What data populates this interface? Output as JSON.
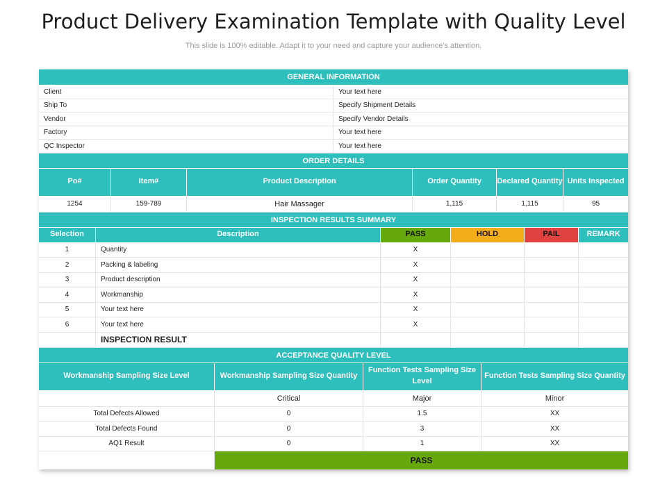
{
  "title": "Product Delivery Examination Template with Quality Level",
  "subtitle": "This slide is 100% editable. Adapt it to your need and capture your audience's attention.",
  "general": {
    "heading": "GENERAL INFORMATION",
    "rows": [
      {
        "label": "Client",
        "value": "Your text here"
      },
      {
        "label": "Ship To",
        "value": "Specify Shipment Details"
      },
      {
        "label": "Vendor",
        "value": "Specify Vendor Details"
      },
      {
        "label": "Factory",
        "value": "Your text here"
      },
      {
        "label": "QC Inspector",
        "value": "Your text here"
      }
    ]
  },
  "order": {
    "heading": "ORDER DETAILS",
    "columns": [
      "Po#",
      "Item#",
      "Product Description",
      "Order Quantity",
      "Declared Quantity",
      "Units Inspected"
    ],
    "row": [
      "1254",
      "159-789",
      "Hair Massager",
      "1,115",
      "1,115",
      "95"
    ]
  },
  "inspection": {
    "heading": "INSPECTION RESULTS SUMMARY",
    "columns": [
      "Selection",
      "Description",
      "PASS",
      "HOLD",
      "PAIL",
      "REMARK"
    ],
    "rows": [
      {
        "num": "1",
        "desc": "Quantity",
        "pass": "X"
      },
      {
        "num": "2",
        "desc": "Packing & labeling",
        "pass": "X"
      },
      {
        "num": "3",
        "desc": "Product description",
        "pass": "X"
      },
      {
        "num": "4",
        "desc": "Workmanship",
        "pass": "X"
      },
      {
        "num": "5",
        "desc": "Your text here",
        "pass": "X"
      },
      {
        "num": "6",
        "desc": "Your text here",
        "pass": "X"
      }
    ],
    "result_label": "INSPECTION RESULT"
  },
  "aql": {
    "heading": "ACCEPTANCE QUALITY LEVEL",
    "columns": [
      "Workmanship Sampling Size Level",
      "Workmanship Sampling Size Quantity",
      "Function Tests Sampling Size Level",
      "Function Tests Sampling Size Quantity"
    ],
    "levels": [
      "Critical",
      "Major",
      "Minor"
    ],
    "rows": [
      {
        "label": "Total Defects Allowed",
        "values": [
          "0",
          "1.5",
          "XX"
        ]
      },
      {
        "label": "Total Defects Found",
        "values": [
          "0",
          "3",
          "XX"
        ]
      },
      {
        "label": "AQ1 Result",
        "values": [
          "0",
          "1",
          "XX"
        ]
      }
    ],
    "final": "PASS"
  },
  "colors": {
    "teal": "#2ebfbd",
    "pass": "#67a80c",
    "hold": "#f5ac1b",
    "pail": "#e0423f"
  }
}
